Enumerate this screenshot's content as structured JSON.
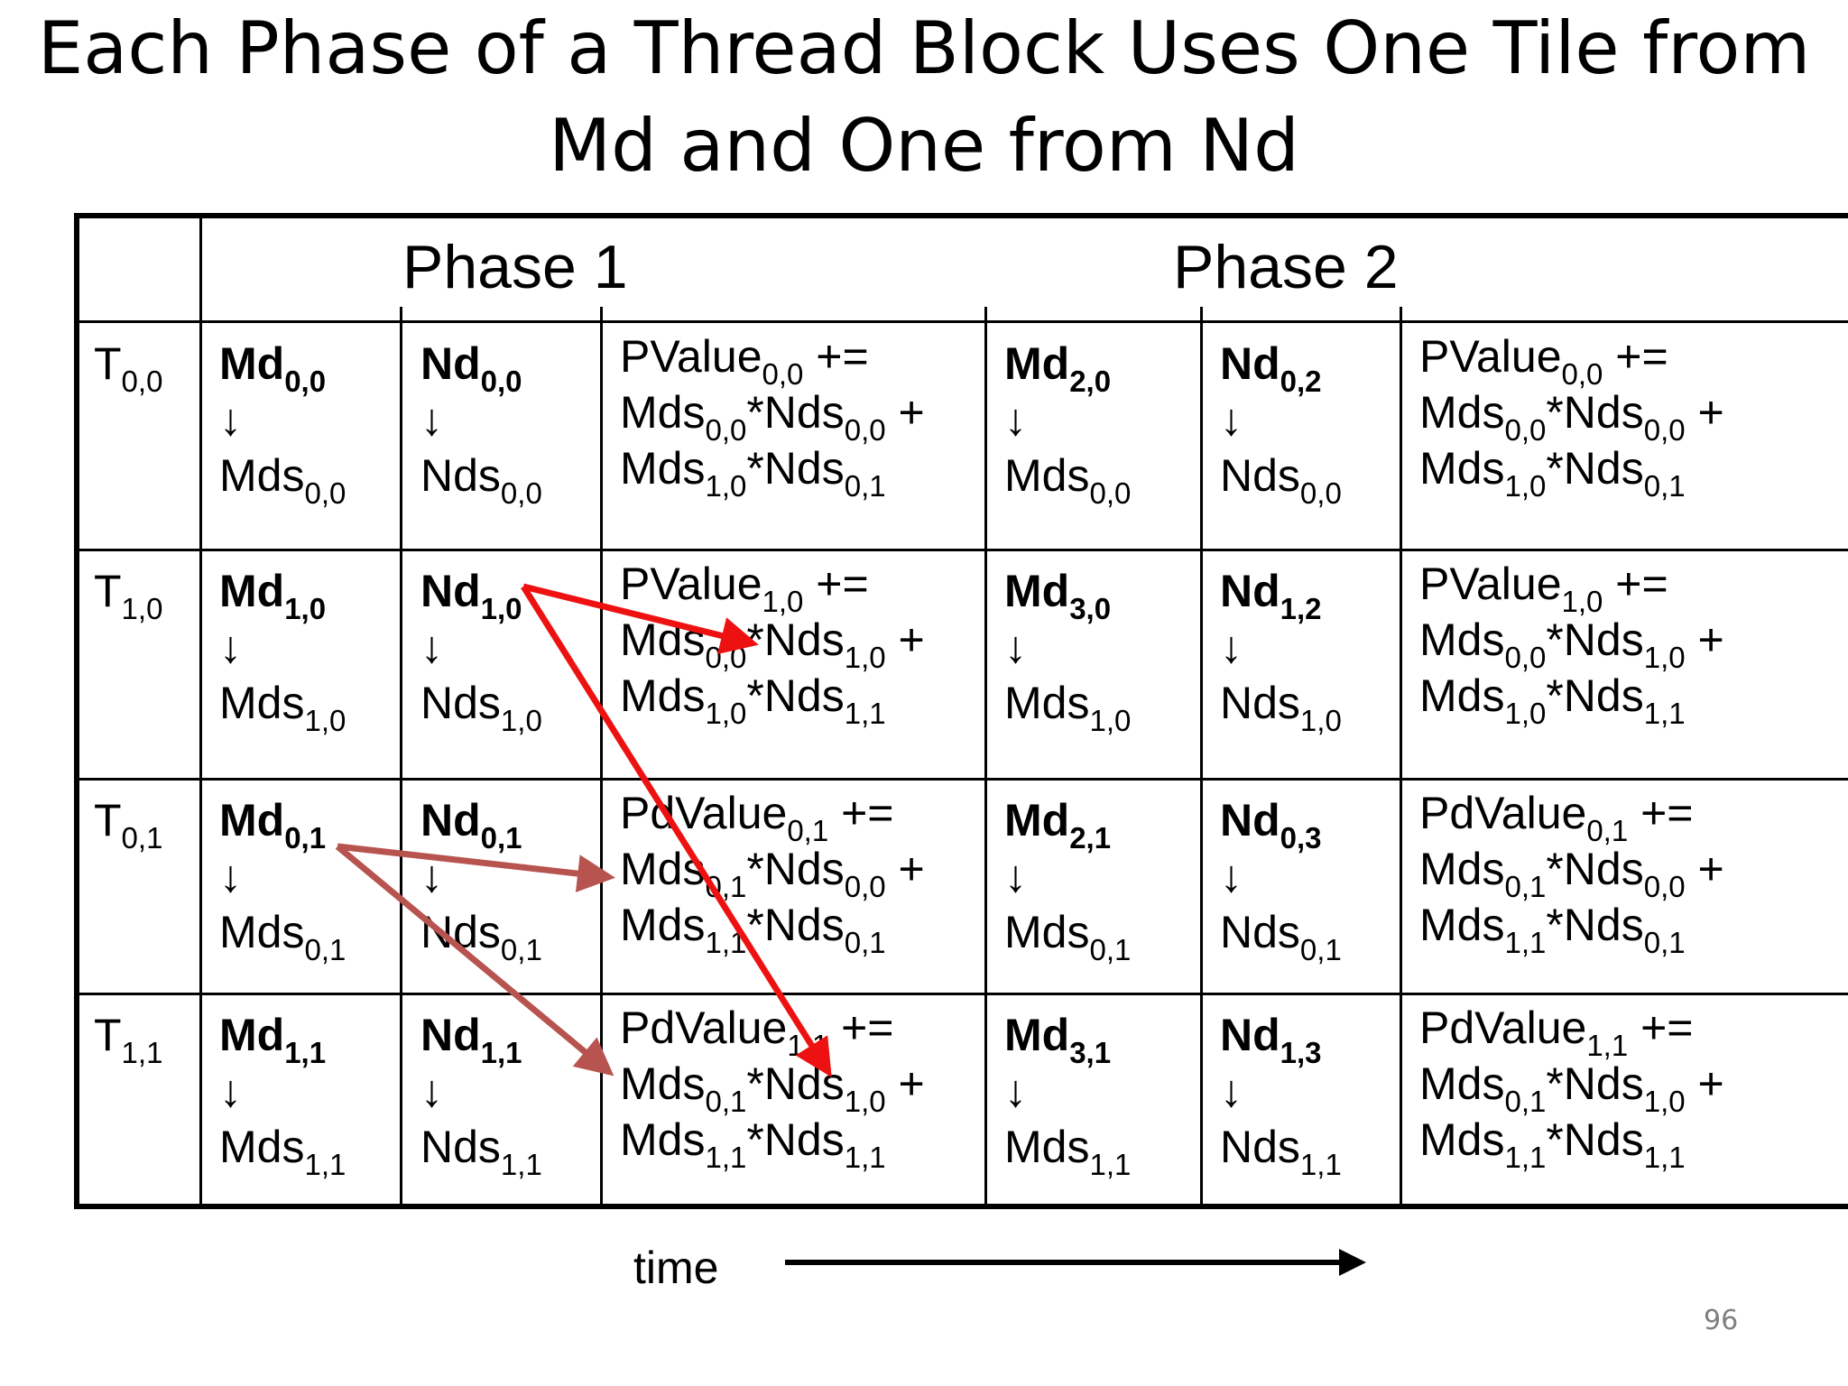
{
  "title": {
    "line1": "Each Phase of a Thread Block Uses One Tile from",
    "line2": "Md and One from Nd"
  },
  "phases": [
    "Phase 1",
    "Phase 2"
  ],
  "time_label": "time",
  "page_number": "96",
  "arrow_glyph": "↓",
  "rows": [
    {
      "thread": {
        "base": "T",
        "sub": "0,0"
      },
      "p1": {
        "md": {
          "base": "Md",
          "sub": "0,0",
          "dest": "Mds",
          "dest_sub": "0,0"
        },
        "nd": {
          "base": "Nd",
          "sub": "0,0",
          "dest": "Nds",
          "dest_sub": "0,0"
        },
        "pvalue": {
          "name": "PValue",
          "sub": "0,0",
          "op": " +=",
          "t1a": "0,0",
          "t1b": "0,0",
          "t2a": "1,0",
          "t2b": "0,1"
        }
      },
      "p2": {
        "md": {
          "base": "Md",
          "sub": "2,0",
          "dest": "Mds",
          "dest_sub": "0,0"
        },
        "nd": {
          "base": "Nd",
          "sub": "0,2",
          "dest": "Nds",
          "dest_sub": "0,0"
        },
        "pvalue": {
          "name": "PValue",
          "sub": "0,0",
          "op": " +=",
          "t1a": "0,0",
          "t1b": "0,0",
          "t2a": "1,0",
          "t2b": "0,1"
        }
      }
    },
    {
      "thread": {
        "base": "T",
        "sub": "1,0"
      },
      "p1": {
        "md": {
          "base": "Md",
          "sub": "1,0",
          "dest": "Mds",
          "dest_sub": "1,0"
        },
        "nd": {
          "base": "Nd",
          "sub": "1,0",
          "dest": "Nds",
          "dest_sub": "1,0"
        },
        "pvalue": {
          "name": "PValue",
          "sub": "1,0",
          "op": " +=",
          "t1a": "0,0",
          "t1b": "1,0",
          "t2a": "1,0",
          "t2b": "1,1"
        }
      },
      "p2": {
        "md": {
          "base": "Md",
          "sub": "3,0",
          "dest": "Mds",
          "dest_sub": "1,0"
        },
        "nd": {
          "base": "Nd",
          "sub": "1,2",
          "dest": "Nds",
          "dest_sub": "1,0"
        },
        "pvalue": {
          "name": "PValue",
          "sub": "1,0",
          "op": " +=",
          "t1a": "0,0",
          "t1b": "1,0",
          "t2a": "1,0",
          "t2b": "1,1"
        }
      }
    },
    {
      "thread": {
        "base": "T",
        "sub": "0,1"
      },
      "p1": {
        "md": {
          "base": "Md",
          "sub": "0,1",
          "dest": "Mds",
          "dest_sub": "0,1"
        },
        "nd": {
          "base": "Nd",
          "sub": "0,1",
          "dest": "Nds",
          "dest_sub": "0,1"
        },
        "pvalue": {
          "name": "PdValue",
          "sub": "0,1",
          "op": " +=",
          "t1a": "0,1",
          "t1b": "0,0",
          "t2a": "1,1",
          "t2b": "0,1"
        }
      },
      "p2": {
        "md": {
          "base": "Md",
          "sub": "2,1",
          "dest": "Mds",
          "dest_sub": "0,1"
        },
        "nd": {
          "base": "Nd",
          "sub": "0,3",
          "dest": "Nds",
          "dest_sub": "0,1"
        },
        "pvalue": {
          "name": "PdValue",
          "sub": "0,1",
          "op": " +=",
          "t1a": "0,1",
          "t1b": "0,0",
          "t2a": "1,1",
          "t2b": "0,1"
        }
      }
    },
    {
      "thread": {
        "base": "T",
        "sub": "1,1"
      },
      "p1": {
        "md": {
          "base": "Md",
          "sub": "1,1",
          "dest": "Mds",
          "dest_sub": "1,1"
        },
        "nd": {
          "base": "Nd",
          "sub": "1,1",
          "dest": "Nds",
          "dest_sub": "1,1"
        },
        "pvalue": {
          "name": "PdValue",
          "sub": "1,1",
          "op": " +=",
          "t1a": "0,1",
          "t1b": "1,0",
          "t2a": "1,1",
          "t2b": "1,1"
        }
      },
      "p2": {
        "md": {
          "base": "Md",
          "sub": "3,1",
          "dest": "Mds",
          "dest_sub": "1,1"
        },
        "nd": {
          "base": "Nd",
          "sub": "1,3",
          "dest": "Nds",
          "dest_sub": "1,1"
        },
        "pvalue": {
          "name": "PdValue",
          "sub": "1,1",
          "op": " +=",
          "t1a": "0,1",
          "t1b": "1,0",
          "t2a": "1,1",
          "t2b": "1,1"
        }
      }
    }
  ],
  "colors": {
    "red_arrow": "#ee1111",
    "brown_arrow": "#b85450",
    "page_number": "#7f7f7f"
  }
}
